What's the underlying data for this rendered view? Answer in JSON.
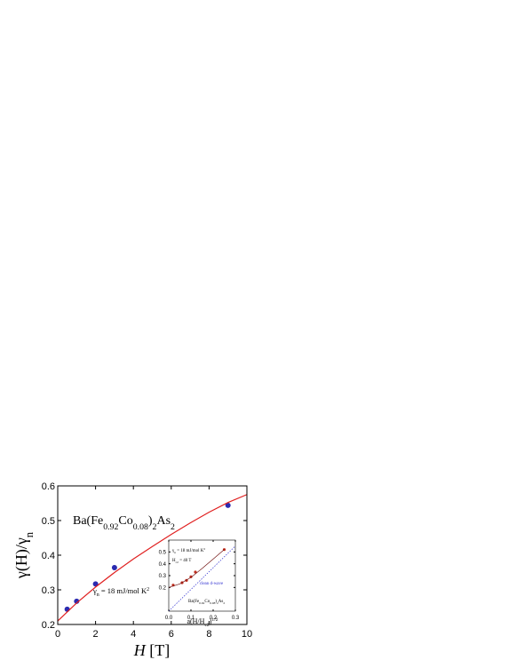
{
  "chart_data": [
    {
      "type": "scatter",
      "ylabel": [
        {
          "text": "γ(H)/γ"
        },
        {
          "text": "n",
          "style": "sub"
        }
      ],
      "xlabel": [
        {
          "text": "H",
          "style": "italic"
        },
        {
          "text": " [T]"
        }
      ],
      "annotations": [
        [
          {
            "text": "Ba(Fe"
          },
          {
            "text": "0.92",
            "style": "sub"
          },
          {
            "text": "Co"
          },
          {
            "text": "0.08",
            "style": "sub"
          },
          {
            "text": ")"
          },
          {
            "text": "2",
            "style": "sub"
          },
          {
            "text": "As"
          },
          {
            "text": "2",
            "style": "sub"
          }
        ],
        [
          {
            "text": "γ"
          },
          {
            "text": "n",
            "style": "sub"
          },
          {
            "text": " = 18 mJ/mol K"
          },
          {
            "text": "2",
            "style": "sup"
          }
        ]
      ],
      "xlim": [
        0,
        10
      ],
      "ylim": [
        0.2,
        0.6
      ],
      "xticks": [
        0,
        2,
        4,
        6,
        8,
        10
      ],
      "yticks": [
        0.2,
        0.3,
        0.4,
        0.5,
        0.6
      ],
      "series": [
        {
          "kind": "points",
          "color": "#2b2bb0",
          "x": [
            0.5,
            1,
            2,
            3,
            9
          ],
          "values": [
            0.244,
            0.267,
            0.317,
            0.364,
            0.544
          ]
        },
        {
          "kind": "line",
          "color": "#e02020",
          "x": [
            0,
            1,
            2,
            3,
            4,
            5,
            6,
            7,
            8,
            9,
            10
          ],
          "values": [
            0.21,
            0.262,
            0.308,
            0.35,
            0.389,
            0.425,
            0.46,
            0.493,
            0.524,
            0.552,
            0.575
          ]
        }
      ]
    },
    {
      "type": "scatter",
      "ylabel": [],
      "xlabel": [
        {
          "text": "a(H/H"
        },
        {
          "text": "c2",
          "style": "sub"
        },
        {
          "text": ")"
        },
        {
          "text": "1/2",
          "style": "sup"
        }
      ],
      "annotations": [
        [
          {
            "text": "γ"
          },
          {
            "text": "n",
            "style": "sub"
          },
          {
            "text": " = 18 mJ/mol K"
          },
          {
            "text": "2",
            "style": "sup"
          }
        ],
        [
          {
            "text": "H"
          },
          {
            "text": "c2",
            "style": "sub"
          },
          {
            "text": " = 40 T"
          }
        ],
        [
          {
            "text": "clean d-wave"
          }
        ],
        [
          {
            "text": "Ba(Fe"
          },
          {
            "text": "0.92",
            "style": "sub"
          },
          {
            "text": "Co"
          },
          {
            "text": "0.08",
            "style": "sub"
          },
          {
            "text": ")"
          },
          {
            "text": "2",
            "style": "sub"
          },
          {
            "text": "As"
          },
          {
            "text": "2",
            "style": "sub"
          }
        ]
      ],
      "xlim": [
        0,
        0.3
      ],
      "ylim": [
        0,
        0.6
      ],
      "xticks": [
        {
          "value": 0,
          "label": "0.0"
        },
        0.1,
        0.2,
        0.3
      ],
      "yticks": [
        0.2,
        0.3,
        0.4,
        0.5
      ],
      "series": [
        {
          "kind": "points",
          "color": "#c03020",
          "x": [
            0.02,
            0.06,
            0.08,
            0.1,
            0.12,
            0.25
          ],
          "values": [
            0.22,
            0.24,
            0.26,
            0.29,
            0.33,
            0.52
          ]
        },
        {
          "kind": "line",
          "color": "#701010",
          "x": [
            0,
            0.05,
            0.1,
            0.15,
            0.2,
            0.25
          ],
          "values": [
            0.2,
            0.23,
            0.285,
            0.36,
            0.44,
            0.52
          ]
        },
        {
          "kind": "dotted",
          "color": "#3030d0",
          "x": [
            0,
            0.3
          ],
          "values": [
            0,
            0.55
          ]
        }
      ]
    }
  ]
}
